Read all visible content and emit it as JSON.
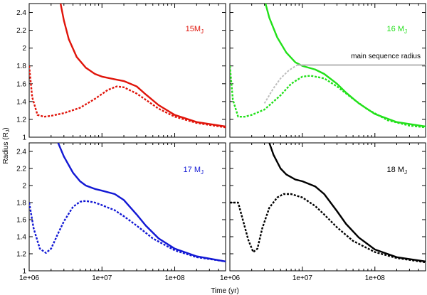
{
  "chart_data": {
    "type": "line",
    "xlabel": "Time (yr)",
    "ylabel": "Radius (R",
    "ylabel_sub": "J",
    "ylabel_close": ")",
    "xscale": "log",
    "xlim": [
      1000000,
      500000000
    ],
    "ylim": [
      1.0,
      2.5
    ],
    "xticks": [
      {
        "value": 1000000,
        "label": "1e+06"
      },
      {
        "value": 10000000,
        "label": "1e+07"
      },
      {
        "value": 100000000,
        "label": "1e+08"
      }
    ],
    "yticks": [
      {
        "value": 1.0,
        "label": "1"
      },
      {
        "value": 1.2,
        "label": "1.2"
      },
      {
        "value": 1.4,
        "label": "1.4"
      },
      {
        "value": 1.6,
        "label": "1.6"
      },
      {
        "value": 1.8,
        "label": "1.8"
      },
      {
        "value": 2.0,
        "label": "2"
      },
      {
        "value": 2.2,
        "label": "2.2"
      },
      {
        "value": 2.4,
        "label": "2.4"
      }
    ],
    "panels": [
      {
        "id": "15",
        "label_main": "15M",
        "label_sub": "J",
        "color": "#e0140a",
        "series": [
          {
            "name": "solid",
            "style": "solid",
            "x": [
              2700000,
              3000000,
              3500000,
              4500000,
              6000000,
              8000000,
              10000000,
              15000000,
              20000000,
              30000000,
              40000000,
              60000000,
              100000000,
              200000000,
              500000000
            ],
            "y": [
              2.5,
              2.31,
              2.1,
              1.9,
              1.78,
              1.71,
              1.68,
              1.65,
              1.63,
              1.57,
              1.48,
              1.36,
              1.25,
              1.17,
              1.12
            ]
          },
          {
            "name": "dashed",
            "style": "dashed",
            "x": [
              1000000,
              1100000,
              1300000,
              1600000,
              2000000,
              3000000,
              5000000,
              8000000,
              12000000,
              16000000,
              20000000,
              30000000,
              40000000,
              60000000,
              100000000,
              200000000,
              500000000
            ],
            "y": [
              1.8,
              1.45,
              1.25,
              1.23,
              1.24,
              1.27,
              1.33,
              1.43,
              1.53,
              1.57,
              1.56,
              1.49,
              1.42,
              1.32,
              1.23,
              1.16,
              1.11
            ]
          }
        ]
      },
      {
        "id": "16",
        "label_main": "16 M",
        "label_sub": "J",
        "color": "#22e01a",
        "annotation": "main sequence radius",
        "series": [
          {
            "name": "solid",
            "style": "solid",
            "x": [
              3100000,
              3500000,
              4500000,
              6000000,
              8000000,
              10000000,
              15000000,
              20000000,
              30000000,
              40000000,
              60000000,
              100000000,
              200000000,
              500000000
            ],
            "y": [
              2.5,
              2.34,
              2.12,
              1.95,
              1.84,
              1.8,
              1.76,
              1.71,
              1.6,
              1.5,
              1.38,
              1.26,
              1.17,
              1.12
            ]
          },
          {
            "name": "dashed",
            "style": "dashed",
            "x": [
              1000000,
              1100000,
              1300000,
              1600000,
              2000000,
              3000000,
              5000000,
              7000000,
              10000000,
              13000000,
              20000000,
              30000000,
              50000000,
              80000000,
              150000000,
              300000000,
              500000000
            ],
            "y": [
              1.8,
              1.42,
              1.23,
              1.23,
              1.25,
              1.31,
              1.47,
              1.6,
              1.68,
              1.69,
              1.66,
              1.57,
              1.43,
              1.31,
              1.19,
              1.13,
              1.11
            ]
          },
          {
            "name": "main sequence",
            "style": "solid",
            "color": "#b5b5b5",
            "x": [
              8500000,
              500000000
            ],
            "y": [
              1.81,
              1.81
            ]
          },
          {
            "name": "main sequence approach",
            "style": "dashed",
            "color": "#bdbdbd",
            "x": [
              3000000,
              4000000,
              5000000,
              6500000,
              8500000
            ],
            "y": [
              1.38,
              1.55,
              1.66,
              1.75,
              1.81
            ]
          }
        ]
      },
      {
        "id": "17",
        "label_main": "17 M",
        "label_sub": "J",
        "color": "#1218d4",
        "series": [
          {
            "name": "solid",
            "style": "solid",
            "x": [
              2500000,
              3000000,
              4000000,
              5000000,
              6000000,
              8000000,
              10000000,
              15000000,
              20000000,
              30000000,
              40000000,
              60000000,
              100000000,
              200000000,
              500000000
            ],
            "y": [
              2.5,
              2.34,
              2.15,
              2.05,
              2.0,
              1.96,
              1.94,
              1.9,
              1.83,
              1.66,
              1.53,
              1.38,
              1.26,
              1.17,
              1.11
            ]
          },
          {
            "name": "dashed",
            "style": "dashed",
            "x": [
              1000000,
              1150000,
              1400000,
              1700000,
              2000000,
              2500000,
              3000000,
              4000000,
              5000000,
              6000000,
              8000000,
              10000000,
              15000000,
              20000000,
              30000000,
              50000000,
              100000000,
              200000000,
              500000000
            ],
            "y": [
              1.8,
              1.5,
              1.26,
              1.21,
              1.26,
              1.44,
              1.58,
              1.75,
              1.81,
              1.82,
              1.8,
              1.77,
              1.71,
              1.64,
              1.53,
              1.38,
              1.24,
              1.16,
              1.11
            ]
          }
        ]
      },
      {
        "id": "18",
        "label_main": "18 M",
        "label_sub": "J",
        "color": "#000000",
        "series": [
          {
            "name": "solid",
            "style": "solid",
            "x": [
              3500000,
              4000000,
              5000000,
              6000000,
              8000000,
              10000000,
              15000000,
              20000000,
              30000000,
              40000000,
              60000000,
              100000000,
              200000000,
              500000000
            ],
            "y": [
              2.5,
              2.36,
              2.2,
              2.13,
              2.07,
              2.05,
              1.99,
              1.9,
              1.7,
              1.55,
              1.39,
              1.25,
              1.16,
              1.11
            ]
          },
          {
            "name": "dashed",
            "style": "dashed",
            "x": [
              1000000,
              1300000,
              1800000,
              2100000,
              2400000,
              2800000,
              3500000,
              4500000,
              5500000,
              7000000,
              10000000,
              15000000,
              20000000,
              30000000,
              50000000,
              100000000,
              200000000,
              500000000
            ],
            "y": [
              1.8,
              1.8,
              1.36,
              1.22,
              1.26,
              1.5,
              1.74,
              1.86,
              1.9,
              1.9,
              1.86,
              1.76,
              1.66,
              1.51,
              1.35,
              1.22,
              1.15,
              1.1
            ]
          }
        ]
      }
    ]
  }
}
